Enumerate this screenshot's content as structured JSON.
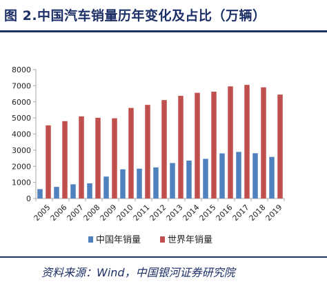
{
  "header": {
    "title": "图 2.中国汽车销量历年变化及占比（万辆）"
  },
  "footer": {
    "source": "资料来源：Wind，中国银河证券研究院"
  },
  "colors": {
    "china": "#4f81bd",
    "world": "#c0504d",
    "axis": "#a6a6a6",
    "grid": "#d9d9d9",
    "brand": "#1c2f66"
  },
  "chart_data": {
    "type": "bar",
    "title": "",
    "xlabel": "",
    "ylabel": "",
    "ylim": [
      0,
      8000
    ],
    "yticks": [
      0,
      1000,
      2000,
      3000,
      4000,
      5000,
      6000,
      7000,
      8000
    ],
    "categories": [
      "2005",
      "2006",
      "2007",
      "2008",
      "2009",
      "2010",
      "2011",
      "2012",
      "2013",
      "2014",
      "2015",
      "2016",
      "2017",
      "2018",
      "2019"
    ],
    "series": [
      {
        "name": "中国年销量",
        "color": "#4f81bd",
        "values": [
          580,
          720,
          880,
          940,
          1360,
          1810,
          1850,
          1930,
          2200,
          2350,
          2460,
          2800,
          2890,
          2810,
          2580
        ]
      },
      {
        "name": "世界年销量",
        "color": "#c0504d",
        "values": [
          4540,
          4800,
          5100,
          5010,
          4980,
          5620,
          5810,
          6110,
          6370,
          6560,
          6630,
          6960,
          7050,
          6900,
          6450
        ]
      }
    ],
    "legend": "bottom",
    "grid": false
  }
}
